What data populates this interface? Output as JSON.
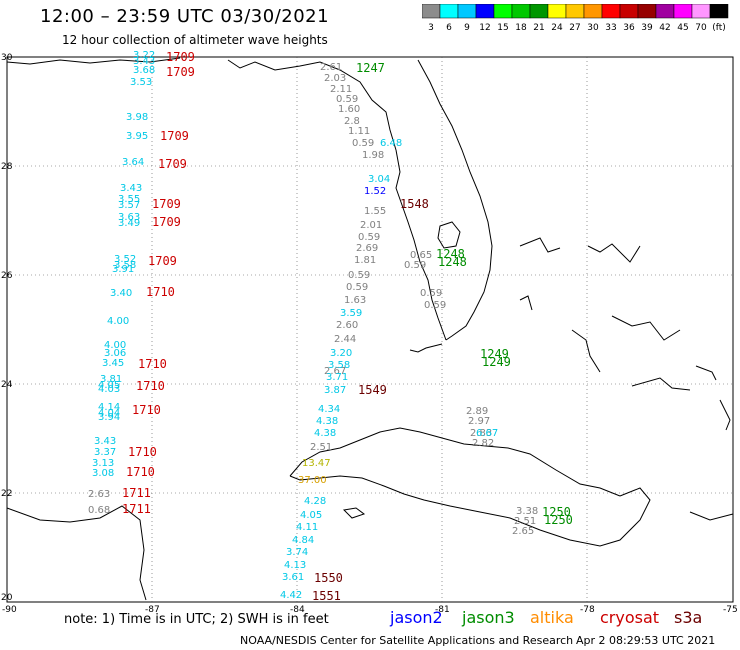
{
  "header": {
    "title": "12:00 – 23:59 UTC 03/30/2021",
    "subtitle": "12 hour collection of altimeter wave heights"
  },
  "color_scale": {
    "labels": [
      "3",
      "6",
      "9",
      "12",
      "15",
      "18",
      "21",
      "24",
      "27",
      "30",
      "33",
      "36",
      "39",
      "42",
      "45",
      "70",
      "(ft)"
    ],
    "colors": [
      "#8c8c8c",
      "#00ffff",
      "#00c8ff",
      "#0000ff",
      "#00ff00",
      "#00c800",
      "#009600",
      "#ffff00",
      "#ffc800",
      "#ff9600",
      "#ff0000",
      "#c80000",
      "#960000",
      "#a000a0",
      "#ff00ff",
      "#ff96ff",
      "#000000"
    ]
  },
  "axes": {
    "lon_labels": [
      "-90",
      "-87",
      "-84",
      "-81",
      "-78",
      "-75"
    ],
    "lat_labels": [
      "30",
      "28",
      "26",
      "24",
      "22",
      "20"
    ]
  },
  "colors": {
    "jason2": "#0000ff",
    "jason3": "#008c00",
    "altika": "#ff8c00",
    "cryosat": "#cc0000",
    "s3a": "#6b0000",
    "gray": "#808080",
    "cyan": "#00c8e6",
    "yellow": "#b4b400"
  },
  "tracks": {
    "west_cyan": [
      "3.22",
      "3.43",
      "3.68",
      "3.53",
      "3.98",
      "3.95",
      "3.64",
      "3.43",
      "3.55",
      "3.57",
      "3.63",
      "3.49",
      "3.52",
      "3.58",
      "3.91",
      "3.40",
      "4.00",
      "4.00",
      "3.06",
      "3.45",
      "3.81",
      "4.05",
      "4.03",
      "4.14",
      "4.04",
      "3.94",
      "3.43",
      "3.37",
      "3.13",
      "3.08"
    ],
    "west_gray": [
      "2.63",
      "0.68"
    ],
    "west_times": [
      "1709",
      "1709",
      "1709",
      "1709",
      "1709",
      "1709",
      "1709",
      "1710",
      "1710",
      "1710",
      "1710",
      "1710",
      "1710",
      "1711",
      "1711",
      "1711",
      "1711"
    ],
    "gulf_gray": [
      "2.61",
      "2.03",
      "2.11",
      "0.59",
      "1.60",
      "2.8",
      "1.11",
      "0.59",
      "1.98",
      "1.55",
      "2.01",
      "0.59",
      "2.69",
      "1.81",
      "0.59",
      "0.59",
      "1.63",
      "2.60",
      "2.44",
      "2.67",
      "2.51"
    ],
    "gulf_cyan": [
      "6.48",
      "3.04",
      "3.59",
      "3.20",
      "3.58",
      "3.71",
      "3.87",
      "4.34",
      "4.38",
      "4.38"
    ],
    "gulf_blue": [
      "1.52"
    ],
    "gulf_yellow": [
      "13.47",
      "37.00"
    ],
    "south_cyan": [
      "4.28",
      "4.05",
      "4.11",
      "4.84",
      "3.74",
      "4.13",
      "3.61",
      "4.42"
    ],
    "straits_gray": [
      "0.65",
      "0.59",
      "0.59",
      "0.59",
      "2.89",
      "2.97",
      "2.83",
      "2.82"
    ],
    "straits_cyan": [
      "6.67"
    ],
    "carib": [
      "3.38",
      "2.51",
      "2.65"
    ],
    "times": {
      "jason3_a": "1247",
      "s3a_a": "1548",
      "jason3_b": "1248",
      "jason3_b2": "1248",
      "s3a_b": "1549",
      "jason3_c": "1249",
      "jason3_c2": "1249",
      "jason3_d": "1250",
      "jason3_d2": "1250",
      "s3a_c": "1550",
      "s3a_d": "1551"
    }
  },
  "footer": {
    "note": "note: 1) Time is in UTC; 2) SWH is in feet",
    "credit": "NOAA/NESDIS Center for Satellite Applications and Research",
    "timestamp": "Apr  2 08:29:53 UTC 2021",
    "legend": {
      "jason2": "jason2",
      "jason3": "jason3",
      "altika": "altika",
      "cryosat": "cryosat",
      "s3a": "s3a"
    }
  }
}
